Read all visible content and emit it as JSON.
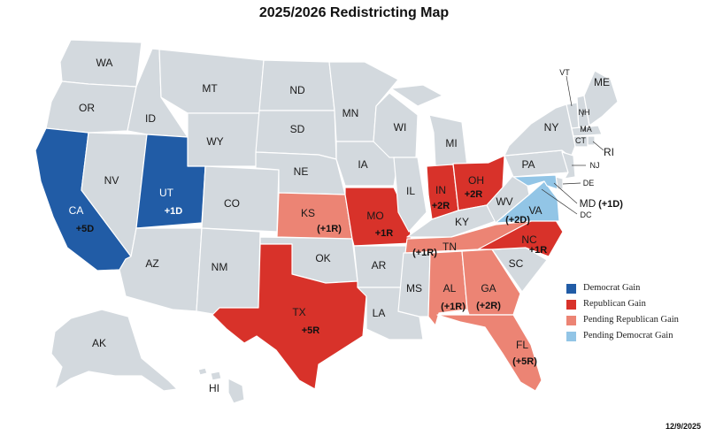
{
  "title": "2025/2026 Redistricting Map",
  "date": "12/9/2025",
  "colors": {
    "no_change": "#d3d9de",
    "dem_gain": "#215ca6",
    "rep_gain": "#d8322a",
    "pending_rep": "#ec8474",
    "pending_dem": "#92c5e6"
  },
  "legend": [
    {
      "label": "Democrat Gain",
      "color": "#215ca6"
    },
    {
      "label": "Republican Gain",
      "color": "#d8322a"
    },
    {
      "label": "Pending Republican Gain",
      "color": "#ec8474"
    },
    {
      "label": "Pending Democrat Gain",
      "color": "#92c5e6"
    }
  ],
  "states": {
    "WA": {
      "label": "WA",
      "status": "none"
    },
    "OR": {
      "label": "OR",
      "status": "none"
    },
    "CA": {
      "label": "CA",
      "status": "dem_gain",
      "change": "+5D"
    },
    "NV": {
      "label": "NV",
      "status": "none"
    },
    "ID": {
      "label": "ID",
      "status": "none"
    },
    "MT": {
      "label": "MT",
      "status": "none"
    },
    "WY": {
      "label": "WY",
      "status": "none"
    },
    "UT": {
      "label": "UT",
      "status": "dem_gain",
      "change": "+1D"
    },
    "AZ": {
      "label": "AZ",
      "status": "none"
    },
    "CO": {
      "label": "CO",
      "status": "none"
    },
    "NM": {
      "label": "NM",
      "status": "none"
    },
    "ND": {
      "label": "ND",
      "status": "none"
    },
    "SD": {
      "label": "SD",
      "status": "none"
    },
    "NE": {
      "label": "NE",
      "status": "none"
    },
    "KS": {
      "label": "KS",
      "status": "pending_rep",
      "change": "(+1R)"
    },
    "OK": {
      "label": "OK",
      "status": "none"
    },
    "TX": {
      "label": "TX",
      "status": "rep_gain",
      "change": "+5R"
    },
    "MN": {
      "label": "MN",
      "status": "none"
    },
    "IA": {
      "label": "IA",
      "status": "none"
    },
    "MO": {
      "label": "MO",
      "status": "rep_gain",
      "change": "+1R"
    },
    "AR": {
      "label": "AR",
      "status": "none"
    },
    "LA": {
      "label": "LA",
      "status": "none"
    },
    "WI": {
      "label": "WI",
      "status": "none"
    },
    "IL": {
      "label": "IL",
      "status": "none"
    },
    "MI": {
      "label": "MI",
      "status": "none"
    },
    "IN": {
      "label": "IN",
      "status": "rep_gain",
      "change": "+2R"
    },
    "OH": {
      "label": "OH",
      "status": "rep_gain",
      "change": "+2R"
    },
    "KY": {
      "label": "KY",
      "status": "none"
    },
    "TN": {
      "label": "TN",
      "status": "pending_rep",
      "change": "(+1R)"
    },
    "MS": {
      "label": "MS",
      "status": "none"
    },
    "AL": {
      "label": "AL",
      "status": "pending_rep",
      "change": "(+1R)"
    },
    "GA": {
      "label": "GA",
      "status": "pending_rep",
      "change": "(+2R)"
    },
    "FL": {
      "label": "FL",
      "status": "pending_rep",
      "change": "(+5R)"
    },
    "SC": {
      "label": "SC",
      "status": "none"
    },
    "NC": {
      "label": "NC",
      "status": "rep_gain",
      "change": "+1R"
    },
    "VA": {
      "label": "VA",
      "status": "pending_dem",
      "change": "(+2D)"
    },
    "WV": {
      "label": "WV",
      "status": "none"
    },
    "PA": {
      "label": "PA",
      "status": "none"
    },
    "NY": {
      "label": "NY",
      "status": "none"
    },
    "ME": {
      "label": "ME",
      "status": "none"
    },
    "VT": {
      "label": "VT",
      "status": "none"
    },
    "NH": {
      "label": "NH",
      "status": "none"
    },
    "MA": {
      "label": "MA",
      "status": "none"
    },
    "CT": {
      "label": "CT",
      "status": "none"
    },
    "RI": {
      "label": "RI",
      "status": "none"
    },
    "NJ": {
      "label": "NJ",
      "status": "none"
    },
    "DE": {
      "label": "DE",
      "status": "none"
    },
    "MD": {
      "label": "MD",
      "status": "pending_dem",
      "change": "(+1D)"
    },
    "DC": {
      "label": "DC",
      "status": "none"
    },
    "AK": {
      "label": "AK",
      "status": "none"
    },
    "HI": {
      "label": "HI",
      "status": "none"
    }
  }
}
